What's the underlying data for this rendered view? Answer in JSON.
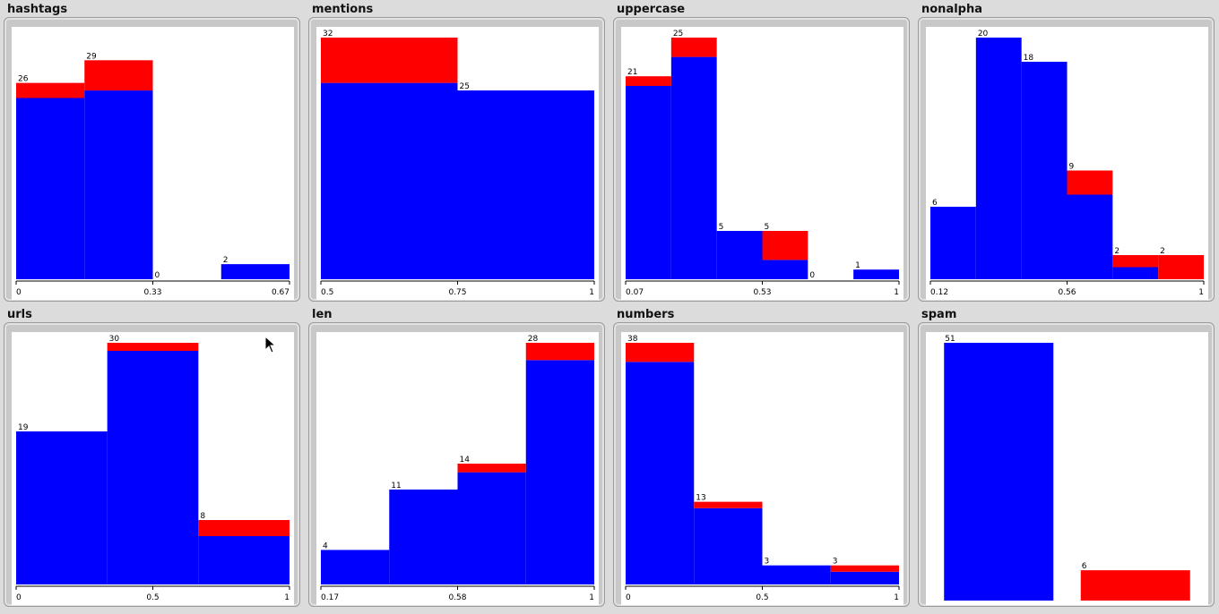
{
  "chart_data": [
    {
      "type": "bar",
      "title": "hashtags",
      "stacked": true,
      "bins": 4,
      "counts": [
        26,
        29,
        0,
        2
      ],
      "red": [
        2,
        4,
        0,
        0
      ],
      "ticks": [
        "0",
        "0.33",
        "0.67"
      ],
      "ymax": 32
    },
    {
      "type": "bar",
      "title": "mentions",
      "stacked": true,
      "bins": 2,
      "counts": [
        32,
        25
      ],
      "red": [
        6,
        0
      ],
      "ticks": [
        "0.5",
        "0.75",
        "1"
      ],
      "ymax": 32
    },
    {
      "type": "bar",
      "title": "uppercase",
      "stacked": true,
      "bins": 6,
      "counts": [
        21,
        25,
        5,
        5,
        0,
        1
      ],
      "red": [
        1,
        2,
        0,
        3,
        0,
        0
      ],
      "ticks": [
        "0.07",
        "0.53",
        "1"
      ],
      "ymax": 25
    },
    {
      "type": "bar",
      "title": "nonalpha",
      "stacked": true,
      "bins": 6,
      "counts": [
        6,
        20,
        18,
        9,
        2,
        2
      ],
      "red": [
        0,
        0,
        0,
        2,
        1,
        2
      ],
      "ticks": [
        "0.12",
        "0.56",
        "1"
      ],
      "ymax": 20
    },
    {
      "type": "bar",
      "title": "urls",
      "stacked": true,
      "bins": 3,
      "counts": [
        19,
        30,
        8
      ],
      "red": [
        0,
        1,
        2
      ],
      "ticks": [
        "0",
        "0.5",
        "1"
      ],
      "ymax": 30
    },
    {
      "type": "bar",
      "title": "len",
      "stacked": true,
      "bins": 4,
      "counts": [
        4,
        11,
        14,
        28
      ],
      "red": [
        0,
        0,
        1,
        2
      ],
      "ticks": [
        "0.17",
        "0.58",
        "1"
      ],
      "ymax": 28
    },
    {
      "type": "bar",
      "title": "numbers",
      "stacked": true,
      "bins": 4,
      "counts": [
        38,
        13,
        3,
        3
      ],
      "red": [
        3,
        1,
        0,
        1
      ],
      "ticks": [
        "0",
        "0.5",
        "1"
      ],
      "ymax": 38
    },
    {
      "type": "bar",
      "title": "spam",
      "stacked": false,
      "categorical": true,
      "counts": [
        51,
        6
      ],
      "colors": [
        "#0000ff",
        "#ff0000"
      ],
      "ticks": [],
      "ymax": 51
    }
  ],
  "colors": {
    "blue": "#0000ff",
    "red": "#ff0000",
    "background": "#dcdcdc",
    "plot_bg": "#ffffff"
  }
}
